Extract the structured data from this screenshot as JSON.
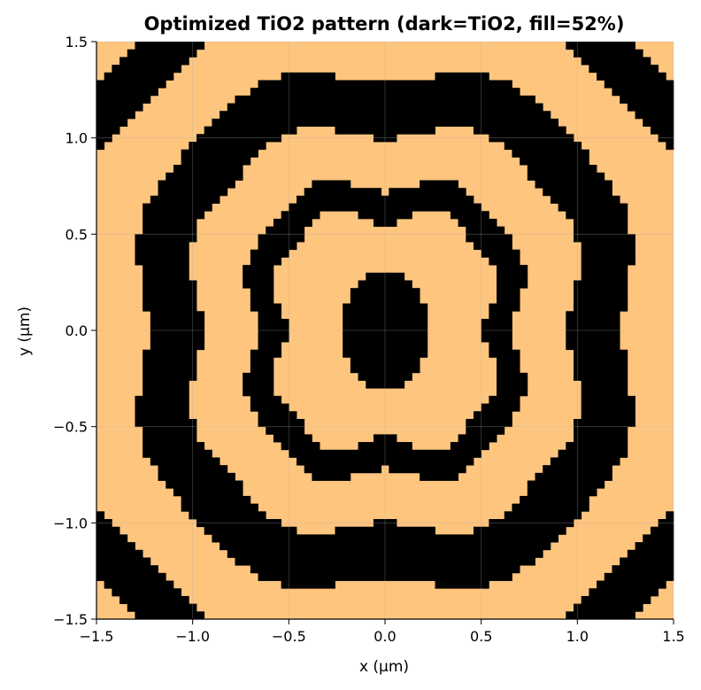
{
  "chart_data": {
    "type": "heatmap",
    "title": "Optimized TiO2 pattern (dark=TiO2, fill=52%)",
    "xlabel": "x (µm)",
    "ylabel": "y (µm)",
    "xlim": [
      -1.5,
      1.5
    ],
    "ylim": [
      -1.5,
      1.5
    ],
    "grid": true,
    "x_ticks": [
      "−1.5",
      "−1.0",
      "−0.5",
      "0.0",
      "0.5",
      "1.0",
      "1.5"
    ],
    "y_ticks": [
      "−1.5",
      "−1.0",
      "−0.5",
      "0.0",
      "0.5",
      "1.0",
      "1.5"
    ],
    "x_tick_values": [
      -1.5,
      -1.0,
      -0.5,
      0.0,
      0.5,
      1.0,
      1.5
    ],
    "y_tick_values": [
      -1.5,
      -1.0,
      -0.5,
      0.0,
      0.5,
      1.0,
      1.5
    ],
    "colors": {
      "tio2": "#000000",
      "background": "#fec57e"
    },
    "grid_resolution": 75,
    "fill_fraction": 0.52,
    "pattern": {
      "symmetry": "mirror-x and mirror-y",
      "tio2_regions": [
        {
          "shape": "ellipse",
          "cx": 0.0,
          "cy": 0.0,
          "rx": 0.23,
          "ry": 0.3
        },
        {
          "shape": "ring",
          "cx": 0.0,
          "cy": 0.0,
          "r_inner": 0.62,
          "r_outer": 0.78,
          "rx_scale": 0.95,
          "ry_scale": 1.05
        },
        {
          "shape": "ring",
          "cx": 0.0,
          "cy": 0.0,
          "r_inner": 1.0,
          "r_outer": 1.27,
          "rx_scale": 1.05,
          "ry_scale": 1.1
        },
        {
          "shape": "ring",
          "cx": 0.0,
          "cy": 0.0,
          "r_inner": 1.7,
          "r_outer": 1.95,
          "rx_scale": 1.0,
          "ry_scale": 1.0
        }
      ]
    }
  }
}
